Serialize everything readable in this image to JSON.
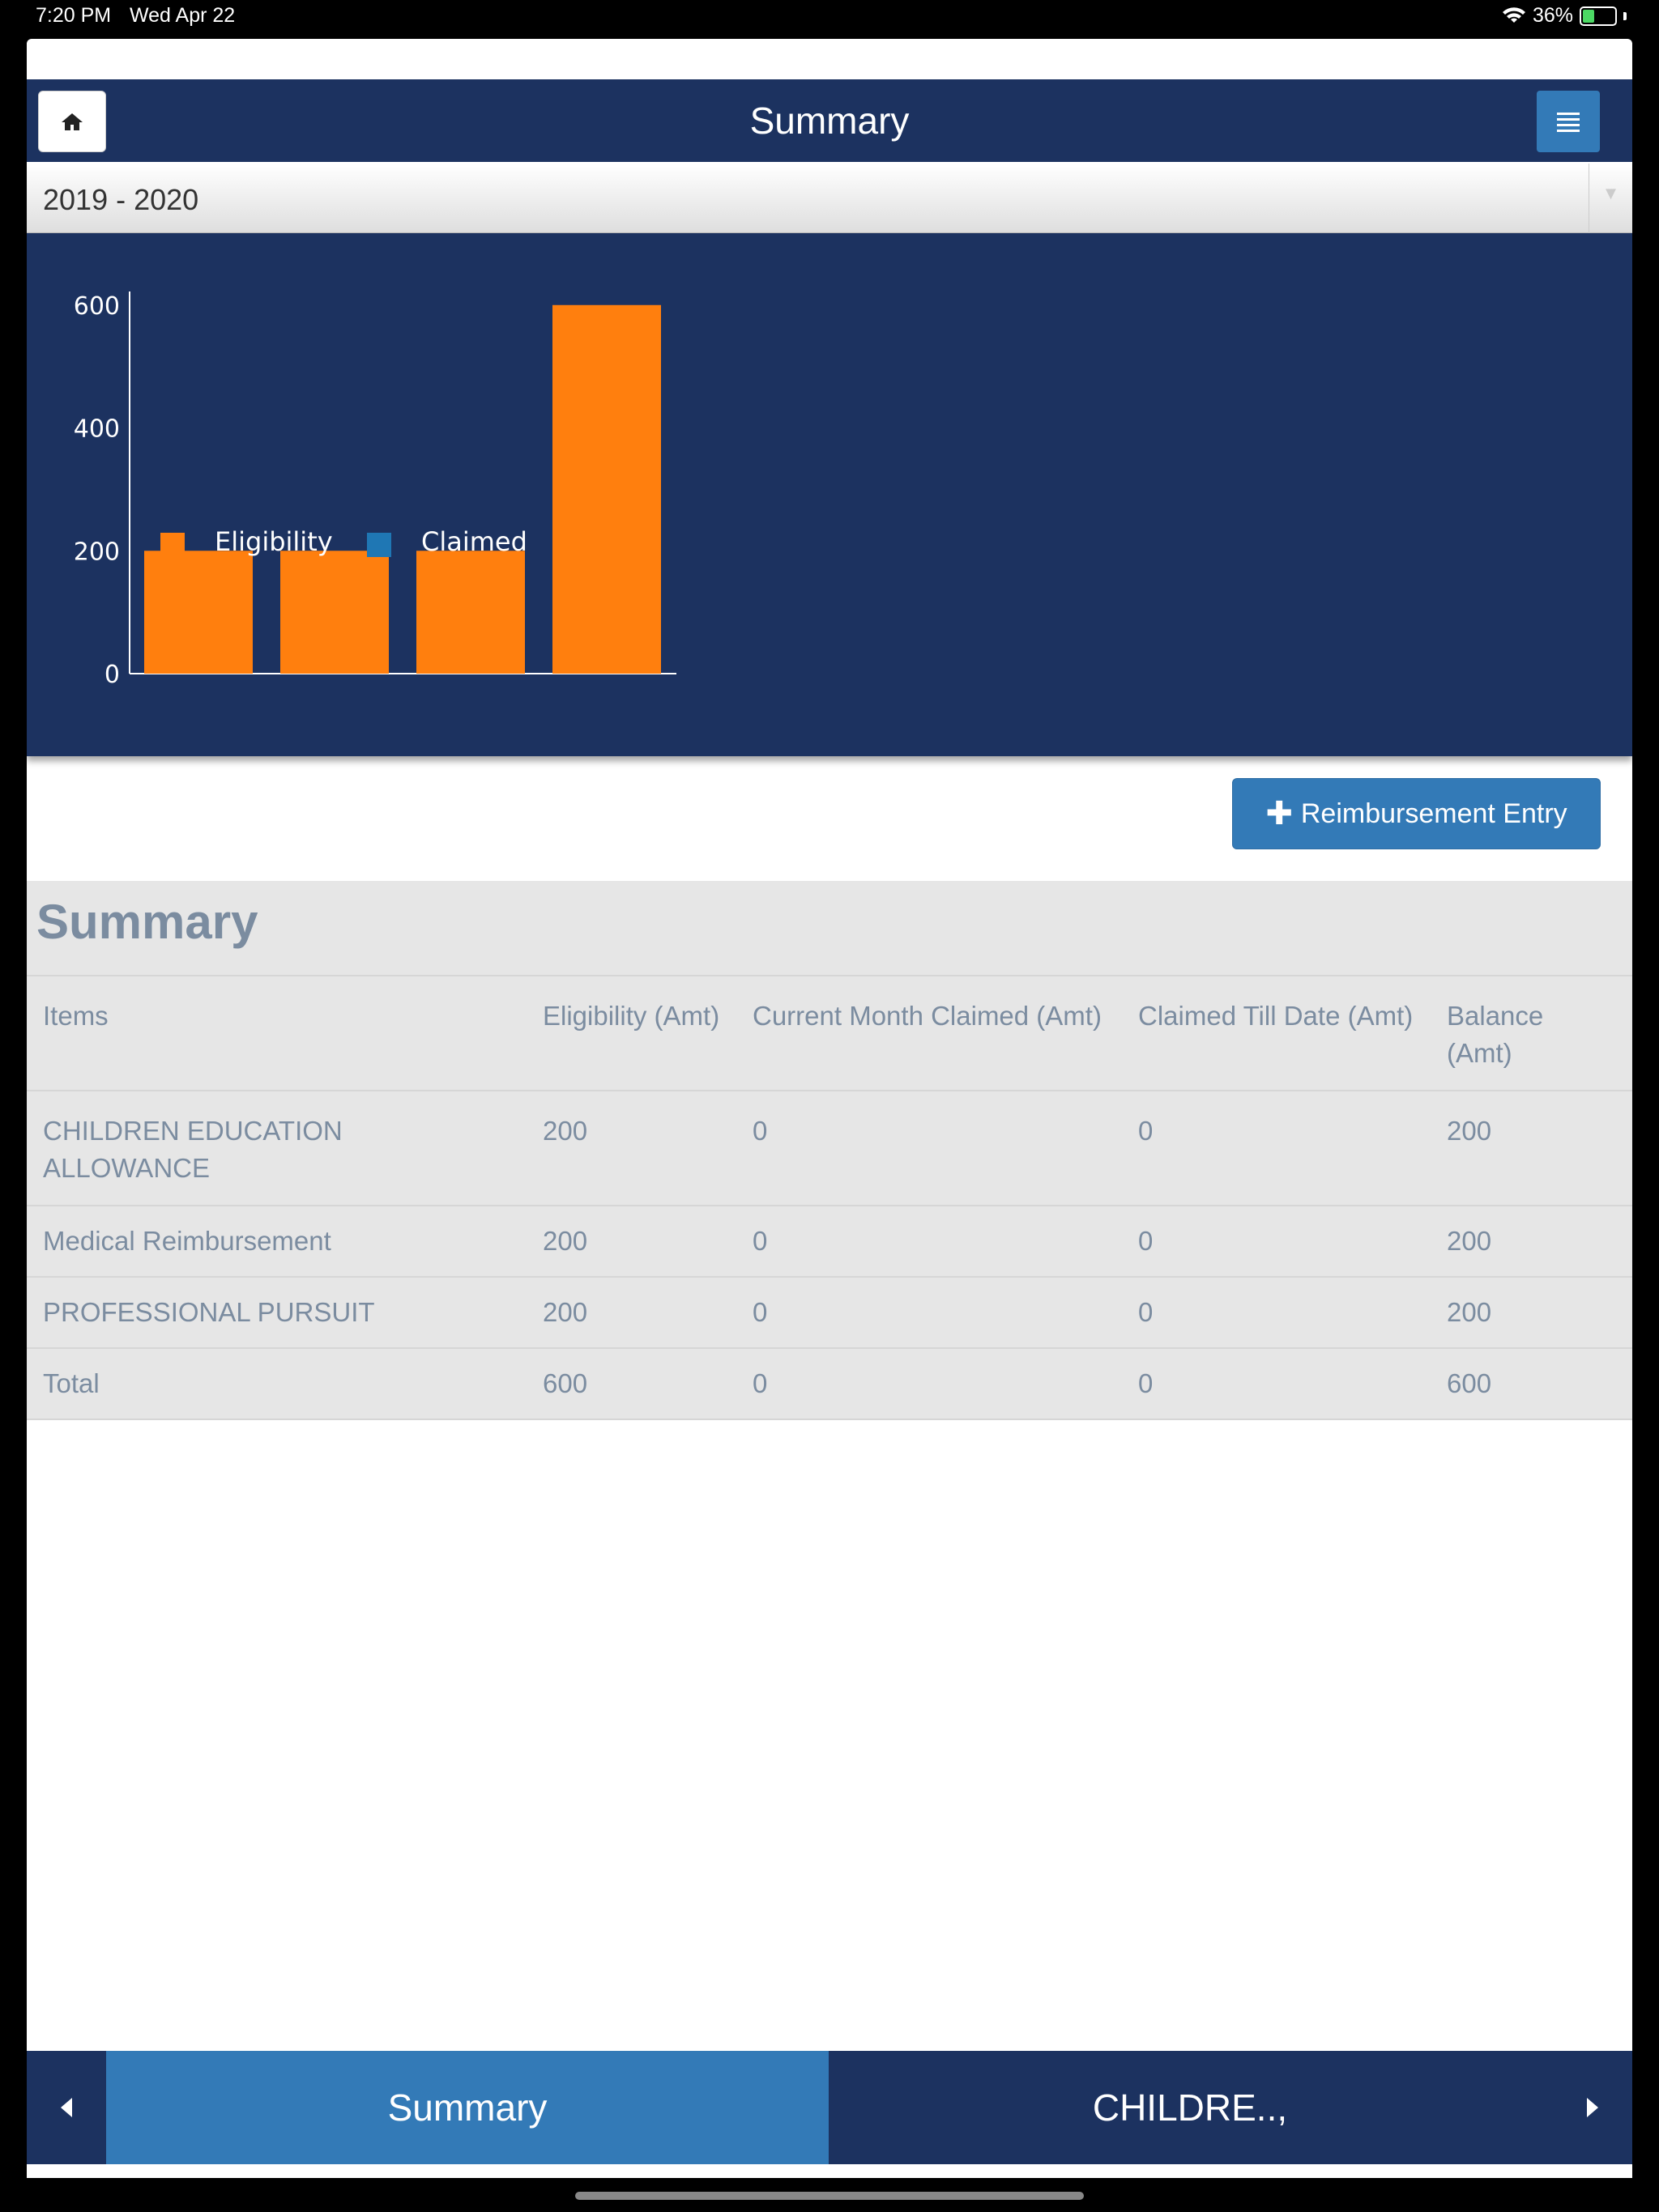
{
  "status_bar": {
    "time": "7:20 PM",
    "date": "Wed Apr 22",
    "battery": "36%",
    "battery_level": 0.36
  },
  "header": {
    "title": "Summary",
    "home_icon": "home-icon",
    "menu_icon": "menu-icon"
  },
  "year_select": {
    "value": "2019 - 2020"
  },
  "chart_data": {
    "type": "bar",
    "categories": [
      "CHILDREN EDUCATION ALLOWANCE",
      "Medical Reimbursement",
      "PROFESSIONAL PURSUIT",
      "Total"
    ],
    "series": [
      {
        "name": "Eligibility",
        "color": "#ff7f0e",
        "values": [
          200,
          200,
          200,
          600
        ]
      },
      {
        "name": "Claimed",
        "color": "#1f77b4",
        "values": [
          0,
          0,
          0,
          0
        ]
      }
    ],
    "yticks": [
      "0",
      "200",
      "400",
      "600"
    ],
    "ylim": [
      0,
      630
    ],
    "legend": "bottom",
    "grid": false
  },
  "actions": {
    "reimbursement_entry": "Reimbursement Entry"
  },
  "summary": {
    "title": "Summary",
    "headers": [
      "Items",
      "Eligibility (Amt)",
      "Current Month Claimed (Amt)",
      "Claimed Till Date (Amt)",
      "Balance (Amt)"
    ],
    "rows": [
      [
        "CHILDREN EDUCATION ALLOWANCE",
        "200",
        "0",
        "0",
        "200"
      ],
      [
        "Medical Reimbursement",
        "200",
        "0",
        "0",
        "200"
      ],
      [
        "PROFESSIONAL PURSUIT",
        "200",
        "0",
        "0",
        "200"
      ],
      [
        "Total",
        "600",
        "0",
        "0",
        "600"
      ]
    ]
  },
  "footer": {
    "tab_active": "Summary",
    "tab_next": "CHILDRE..,",
    "prev_icon": "caret-left-icon",
    "next_icon": "caret-right-icon"
  },
  "colors": {
    "navy": "#1c3260",
    "accent": "#337ab7",
    "table_bg": "#e6e6e6",
    "table_text": "#7b8ca0"
  }
}
